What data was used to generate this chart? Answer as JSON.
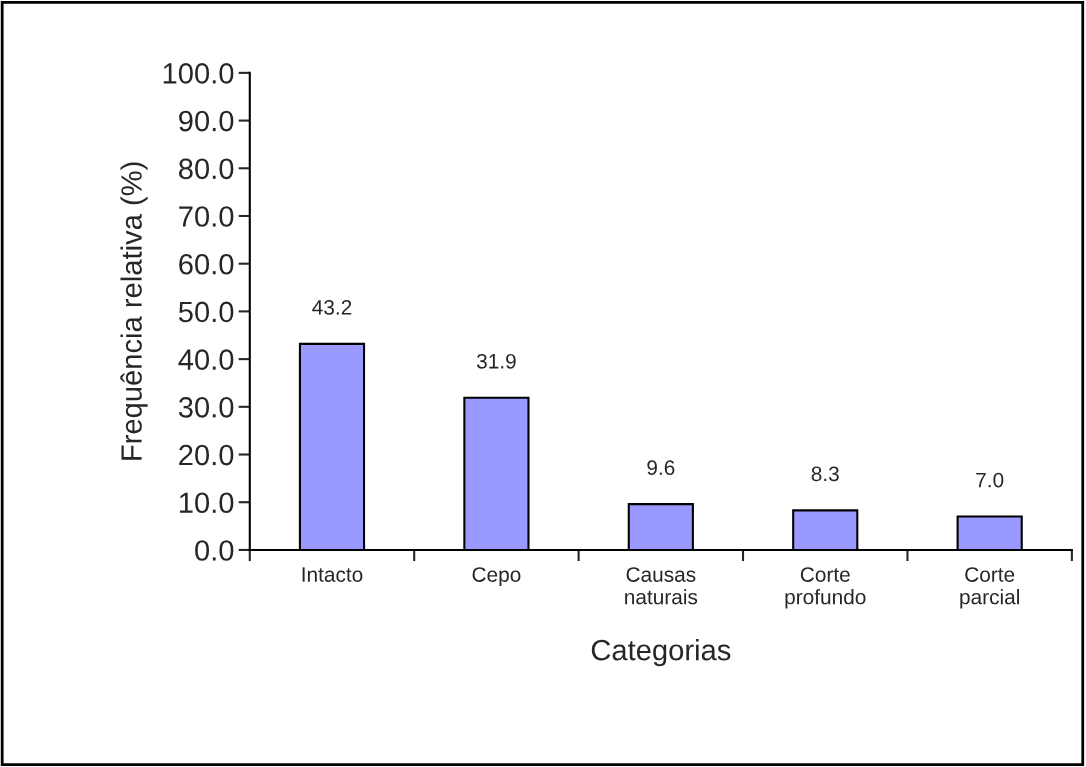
{
  "chart_data": {
    "type": "bar",
    "xlabel": "Categorias",
    "ylabel": "Frequência relativa (%)",
    "categories": [
      "Intacto",
      "Cepo",
      "Causas\nnaturais",
      "Corte\nprofundo",
      "Corte\nparcial"
    ],
    "values": [
      43.2,
      31.9,
      9.6,
      8.3,
      7.0
    ],
    "color": "#9999ff",
    "ylim": [
      0,
      100
    ],
    "yticks": [
      {
        "value": 0,
        "label": "0.0"
      },
      {
        "value": 10,
        "label": "10.0"
      },
      {
        "value": 20,
        "label": "20.0"
      },
      {
        "value": 30,
        "label": "30.0"
      },
      {
        "value": 40,
        "label": "40.0"
      },
      {
        "value": 50,
        "label": "50.0"
      },
      {
        "value": 60,
        "label": "60.0"
      },
      {
        "value": 70,
        "label": "70.0"
      },
      {
        "value": 80,
        "label": "80.0"
      },
      {
        "value": 90,
        "label": "90.0"
      },
      {
        "value": 100,
        "label": "100.0"
      }
    ],
    "value_labels": [
      "43.2",
      "31.9",
      "9.6",
      "8.3",
      "7.0"
    ],
    "grid": false,
    "legend": false
  }
}
